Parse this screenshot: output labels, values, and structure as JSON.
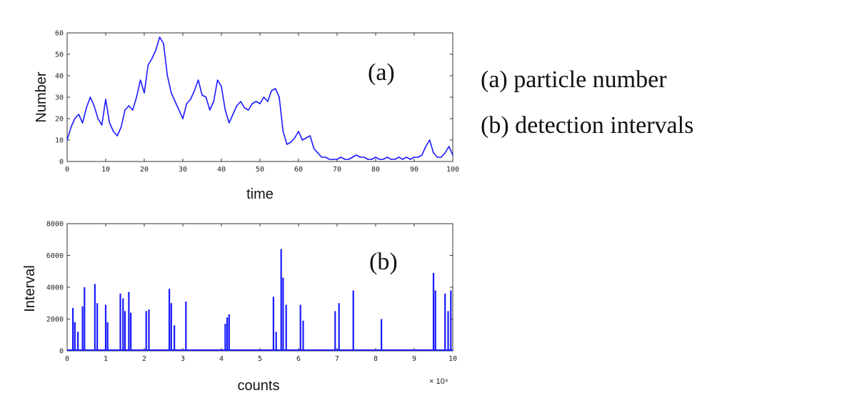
{
  "legend": {
    "line1": "(a) particle number",
    "line2": "(b) detection intervals"
  },
  "chart_data": [
    {
      "id": "a",
      "type": "line",
      "panel_label": "(a)",
      "title": "",
      "xlabel": "time",
      "ylabel": "Number",
      "xlim": [
        0,
        100
      ],
      "ylim": [
        0,
        60
      ],
      "xticks": [
        0,
        10,
        20,
        30,
        40,
        50,
        60,
        70,
        80,
        90,
        100
      ],
      "yticks": [
        0,
        10,
        20,
        30,
        40,
        50,
        60
      ],
      "color": "#1a1aff",
      "series": [
        {
          "name": "particle number",
          "x": [
            0,
            1,
            2,
            3,
            4,
            5,
            6,
            7,
            8,
            9,
            10,
            11,
            12,
            13,
            14,
            15,
            16,
            17,
            18,
            19,
            20,
            21,
            22,
            23,
            24,
            25,
            26,
            27,
            28,
            29,
            30,
            31,
            32,
            33,
            34,
            35,
            36,
            37,
            38,
            39,
            40,
            41,
            42,
            43,
            44,
            45,
            46,
            47,
            48,
            49,
            50,
            51,
            52,
            53,
            54,
            55,
            56,
            57,
            58,
            59,
            60,
            61,
            62,
            63,
            64,
            65,
            66,
            67,
            68,
            69,
            70,
            71,
            72,
            73,
            74,
            75,
            76,
            77,
            78,
            79,
            80,
            81,
            82,
            83,
            84,
            85,
            86,
            87,
            88,
            89,
            90,
            91,
            92,
            93,
            94,
            95,
            96,
            97,
            98,
            99,
            100
          ],
          "values": [
            10,
            16,
            20,
            22,
            18,
            25,
            30,
            26,
            20,
            17,
            29,
            18,
            14,
            12,
            16,
            24,
            26,
            24,
            30,
            38,
            32,
            45,
            48,
            52,
            58,
            55,
            40,
            32,
            28,
            24,
            20,
            27,
            29,
            33,
            38,
            31,
            30,
            24,
            28,
            38,
            35,
            24,
            18,
            22,
            26,
            28,
            25,
            24,
            27,
            28,
            27,
            30,
            28,
            33,
            34,
            30,
            14,
            8,
            9,
            11,
            14,
            10,
            11,
            12,
            6,
            4,
            2,
            2,
            1,
            1,
            1,
            2,
            1,
            1,
            2,
            3,
            2,
            2,
            1,
            1,
            2,
            1,
            1,
            2,
            1,
            1,
            2,
            1,
            2,
            1,
            2,
            2,
            3,
            7,
            10,
            4,
            2,
            2,
            4,
            7,
            3
          ]
        }
      ]
    },
    {
      "id": "b",
      "type": "line",
      "panel_label": "(b)",
      "title": "",
      "xlabel": "counts",
      "ylabel": "Interval",
      "xlim": [
        0,
        10
      ],
      "ylim": [
        0,
        8000
      ],
      "x_multiplier": "× 10⁴",
      "xticks": [
        0,
        1,
        2,
        3,
        4,
        5,
        6,
        7,
        8,
        9,
        10
      ],
      "yticks": [
        0,
        2000,
        4000,
        6000,
        8000
      ],
      "color": "#1a1aff",
      "series": [
        {
          "name": "detection intervals",
          "x": [
            0.15,
            0.2,
            0.28,
            0.4,
            0.45,
            0.72,
            0.78,
            1.0,
            1.05,
            1.38,
            1.45,
            1.5,
            1.6,
            1.65,
            2.05,
            2.12,
            2.65,
            2.7,
            2.78,
            3.08,
            4.1,
            4.15,
            4.2,
            5.35,
            5.42,
            5.55,
            5.6,
            5.68,
            6.05,
            6.12,
            6.95,
            7.05,
            7.42,
            8.15,
            9.5,
            9.55,
            9.8,
            9.88,
            9.95
          ],
          "values": [
            2700,
            1800,
            1200,
            2800,
            4000,
            4200,
            3000,
            2900,
            1800,
            3600,
            3300,
            2500,
            3700,
            2400,
            2500,
            2600,
            3900,
            3000,
            1600,
            3100,
            1700,
            2100,
            2300,
            3400,
            1200,
            6400,
            4600,
            2900,
            2900,
            1900,
            2500,
            3000,
            3800,
            2000,
            4900,
            3800,
            3600,
            2500,
            3800
          ]
        }
      ]
    }
  ]
}
